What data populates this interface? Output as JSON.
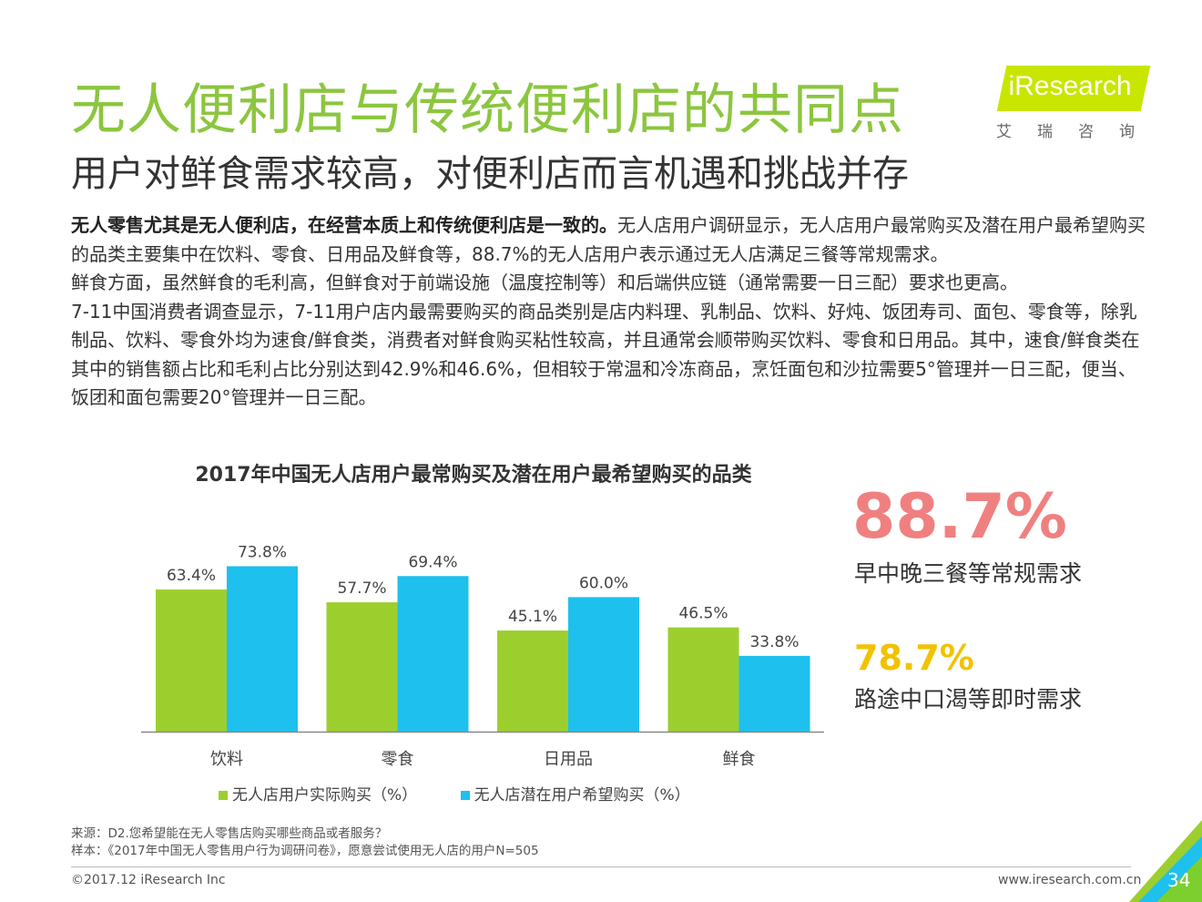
{
  "header": {
    "title": "无人便利店与传统便利店的共同点",
    "subtitle": "用户对鲜食需求较高，对便利店而言机遇和挑战并存"
  },
  "logo": {
    "text": "iResearch",
    "cn": "艾瑞咨询",
    "color": "#c8e600"
  },
  "body": {
    "p1_bold": "无人零售尤其是无人便利店，在经营本质上和传统便利店是一致的。",
    "p1_rest": "无人店用户调研显示，无人店用户最常购买及潜在用户最希望购买的品类主要集中在饮料、零食、日用品及鲜食等，88.7%的无人店用户表示通过无人店满足三餐等常规需求。",
    "p2": "鲜食方面，虽然鲜食的毛利高，但鲜食对于前端设施（温度控制等）和后端供应链（通常需要一日三配）要求也更高。",
    "p3": "7-11中国消费者调查显示，7-11用户店内最需要购买的商品类别是店内料理、乳制品、饮料、好炖、饭团寿司、面包、零食等，除乳制品、饮料、零食外均为速食/鲜食类，消费者对鲜食购买粘性较高，并且通常会顺带购买饮料、零食和日用品。其中，速食/鲜食类在其中的销售额占比和毛利占比分别达到42.9%和46.6%，但相较于常温和冷冻商品，烹饪面包和沙拉需要5°管理并一日三配，便当、饭团和面包需要20°管理并一日三配。"
  },
  "chart_data": {
    "type": "bar",
    "title": "2017年中国无人店用户最常购买及潜在用户最希望购买的品类",
    "categories": [
      "饮料",
      "零食",
      "日用品",
      "鲜食"
    ],
    "series": [
      {
        "name": "无人店用户实际购买（%）",
        "values": [
          63.4,
          57.7,
          45.1,
          46.5
        ],
        "labels": [
          "63.4%",
          "57.7%",
          "45.1%",
          "46.5%"
        ],
        "color": "#9ccf2e"
      },
      {
        "name": "无人店潜在用户希望购买（%）",
        "values": [
          73.8,
          69.4,
          60.0,
          33.8
        ],
        "labels": [
          "73.8%",
          "69.4%",
          "60.0%",
          "33.8%"
        ],
        "color": "#1ec0ee"
      }
    ],
    "ylim": [
      0,
      100
    ],
    "grid": false,
    "legend_position": "bottom"
  },
  "stats": [
    {
      "value": "88.7%",
      "label": "早中晚三餐等常规需求",
      "color": "#f08080"
    },
    {
      "value": "78.7%",
      "label": "路途中口渴等即时需求",
      "color": "#f2c200"
    }
  ],
  "footer": {
    "source": "来源：D2.您希望能在无人零售店购买哪些商品或者服务？",
    "sample": "样本：《2017年中国无人零售用户行为调研问卷》，愿意尝试使用无人店的用户N=505",
    "copyright": "©2017.12 iResearch Inc",
    "website": "www.iresearch.com.cn",
    "page": "34"
  }
}
